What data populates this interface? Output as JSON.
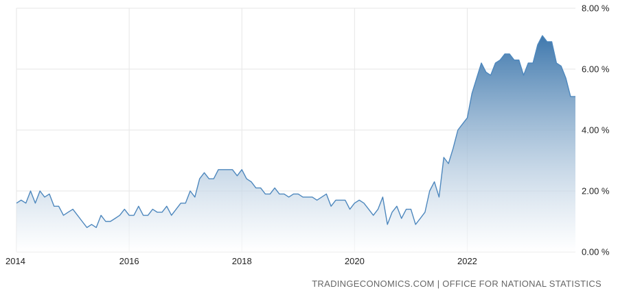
{
  "source_text": "TRADINGECONOMICS.COM | OFFICE FOR NATIONAL STATISTICS",
  "colors": {
    "line": "#4d87bd",
    "fill_top": "#3f78ad",
    "fill_bottom": "#ffffff",
    "grid": "#e6e6e6",
    "text": "#222222"
  },
  "chart_data": {
    "type": "area",
    "title": "",
    "xlabel": "",
    "ylabel": "",
    "xlim": [
      2014.0,
      2023.92
    ],
    "ylim": [
      0,
      8
    ],
    "grid": true,
    "x_ticks": [
      {
        "value": 2014,
        "label": "2014"
      },
      {
        "value": 2016,
        "label": "2016"
      },
      {
        "value": 2018,
        "label": "2018"
      },
      {
        "value": 2020,
        "label": "2020"
      },
      {
        "value": 2022,
        "label": "2022"
      }
    ],
    "y_ticks": [
      {
        "value": 0,
        "label": "0.00 %"
      },
      {
        "value": 2,
        "label": "2.00 %"
      },
      {
        "value": 4,
        "label": "4.00 %"
      },
      {
        "value": 6,
        "label": "6.00 %"
      },
      {
        "value": 8,
        "label": "8.00 %"
      }
    ],
    "series": [
      {
        "x": [
          "2014-01",
          "2014-02",
          "2014-03",
          "2014-04",
          "2014-05",
          "2014-06",
          "2014-07",
          "2014-08",
          "2014-09",
          "2014-10",
          "2014-11",
          "2014-12",
          "2015-01",
          "2015-02",
          "2015-03",
          "2015-04",
          "2015-05",
          "2015-06",
          "2015-07",
          "2015-08",
          "2015-09",
          "2015-10",
          "2015-11",
          "2015-12",
          "2016-01",
          "2016-02",
          "2016-03",
          "2016-04",
          "2016-05",
          "2016-06",
          "2016-07",
          "2016-08",
          "2016-09",
          "2016-10",
          "2016-11",
          "2016-12",
          "2017-01",
          "2017-02",
          "2017-03",
          "2017-04",
          "2017-05",
          "2017-06",
          "2017-07",
          "2017-08",
          "2017-09",
          "2017-10",
          "2017-11",
          "2017-12",
          "2018-01",
          "2018-02",
          "2018-03",
          "2018-04",
          "2018-05",
          "2018-06",
          "2018-07",
          "2018-08",
          "2018-09",
          "2018-10",
          "2018-11",
          "2018-12",
          "2019-01",
          "2019-02",
          "2019-03",
          "2019-04",
          "2019-05",
          "2019-06",
          "2019-07",
          "2019-08",
          "2019-09",
          "2019-10",
          "2019-11",
          "2019-12",
          "2020-01",
          "2020-02",
          "2020-03",
          "2020-04",
          "2020-05",
          "2020-06",
          "2020-07",
          "2020-08",
          "2020-09",
          "2020-10",
          "2020-11",
          "2020-12",
          "2021-01",
          "2021-02",
          "2021-03",
          "2021-04",
          "2021-05",
          "2021-06",
          "2021-07",
          "2021-08",
          "2021-09",
          "2021-10",
          "2021-11",
          "2021-12",
          "2022-01",
          "2022-02",
          "2022-03",
          "2022-04",
          "2022-05",
          "2022-06",
          "2022-07",
          "2022-08",
          "2022-09",
          "2022-10",
          "2022-11",
          "2022-12",
          "2023-01",
          "2023-02",
          "2023-03",
          "2023-04",
          "2023-05",
          "2023-06",
          "2023-07",
          "2023-08",
          "2023-09",
          "2023-10",
          "2023-11",
          "2023-12"
        ],
        "values": [
          1.6,
          1.7,
          1.6,
          2.0,
          1.6,
          2.0,
          1.8,
          1.9,
          1.5,
          1.5,
          1.2,
          1.3,
          1.4,
          1.2,
          1.0,
          0.8,
          0.9,
          0.8,
          1.2,
          1.0,
          1.0,
          1.1,
          1.2,
          1.4,
          1.2,
          1.2,
          1.5,
          1.2,
          1.2,
          1.4,
          1.3,
          1.3,
          1.5,
          1.2,
          1.4,
          1.6,
          1.6,
          2.0,
          1.8,
          2.4,
          2.6,
          2.4,
          2.4,
          2.7,
          2.7,
          2.7,
          2.7,
          2.5,
          2.7,
          2.4,
          2.3,
          2.1,
          2.1,
          1.9,
          1.9,
          2.1,
          1.9,
          1.9,
          1.8,
          1.9,
          1.9,
          1.8,
          1.8,
          1.8,
          1.7,
          1.8,
          1.9,
          1.5,
          1.7,
          1.7,
          1.7,
          1.4,
          1.6,
          1.7,
          1.6,
          1.4,
          1.2,
          1.4,
          1.8,
          0.9,
          1.3,
          1.5,
          1.1,
          1.4,
          1.4,
          0.9,
          1.1,
          1.3,
          2.0,
          2.3,
          1.8,
          3.1,
          2.9,
          3.4,
          4.0,
          4.2,
          4.4,
          5.2,
          5.7,
          6.2,
          5.9,
          5.8,
          6.2,
          6.3,
          6.5,
          6.5,
          6.3,
          6.3,
          5.8,
          6.2,
          6.2,
          6.8,
          7.1,
          6.9,
          6.9,
          6.2,
          6.1,
          5.7,
          5.1,
          5.1
        ]
      }
    ]
  }
}
